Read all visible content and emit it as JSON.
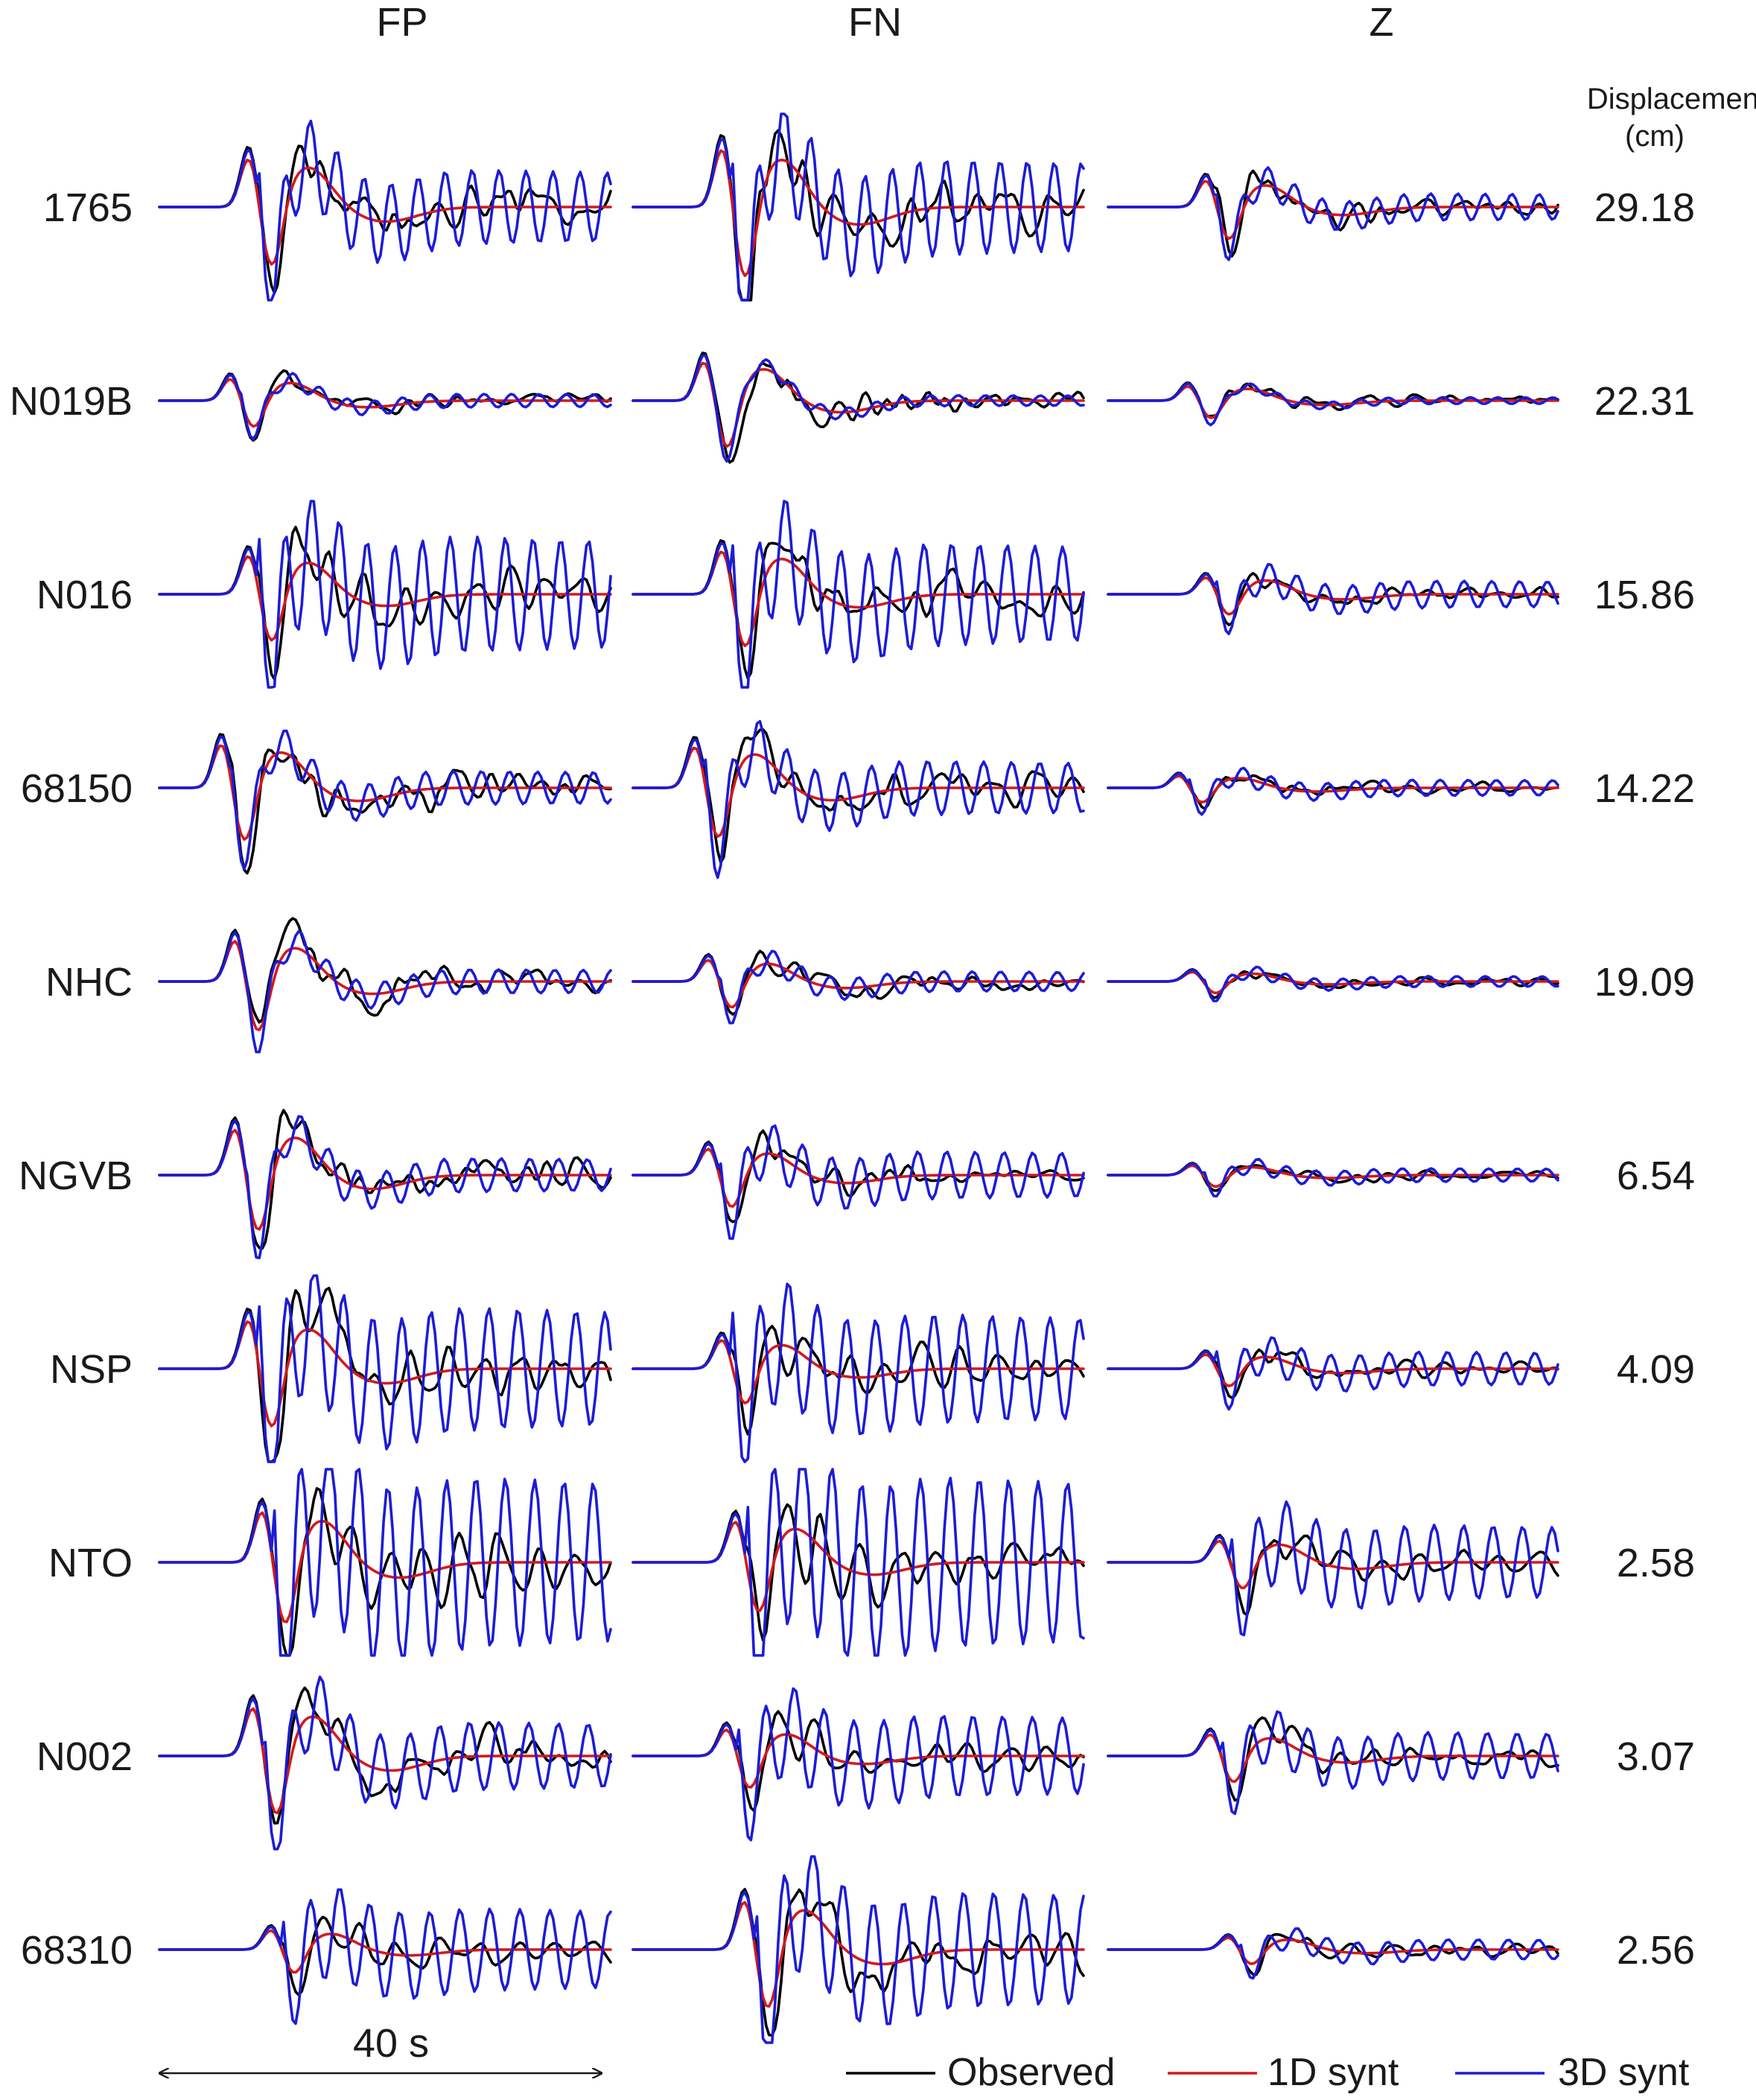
{
  "chart_data": {
    "type": "line",
    "components": [
      "FP",
      "FN",
      "Z"
    ],
    "amplitude_header": [
      "Displacement",
      "(cm)"
    ],
    "time_scale": {
      "label": "40 s",
      "seconds": 40
    },
    "series": [
      {
        "name": "Observed",
        "color": "#000000"
      },
      {
        "name": "1D synt",
        "color": "#d41a1a"
      },
      {
        "name": "3D synt",
        "color": "#1c1cd6"
      }
    ],
    "stations": [
      {
        "name": "1765",
        "peak_displacement": "29.18"
      },
      {
        "name": "N019B",
        "peak_displacement": "22.31"
      },
      {
        "name": "N016",
        "peak_displacement": "15.86"
      },
      {
        "name": "68150",
        "peak_displacement": "14.22"
      },
      {
        "name": "NHC",
        "peak_displacement": "19.09"
      },
      {
        "name": "NGVB",
        "peak_displacement": "6.54"
      },
      {
        "name": "NSP",
        "peak_displacement": "4.09"
      },
      {
        "name": "NTO",
        "peak_displacement": "2.58"
      },
      {
        "name": "N002",
        "peak_displacement": "3.07"
      },
      {
        "name": "68310",
        "peak_displacement": "2.56"
      }
    ]
  }
}
